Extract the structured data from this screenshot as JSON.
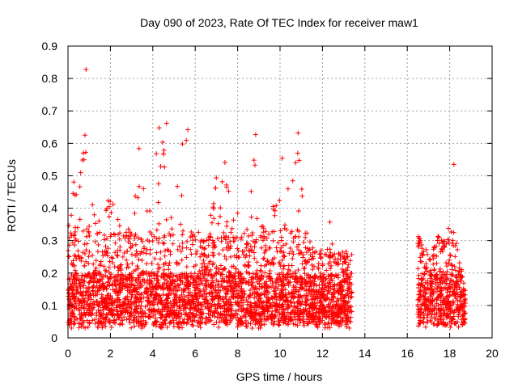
{
  "chart_data": {
    "type": "scatter",
    "title": "Day 090 of 2023, Rate Of TEC Index for receiver maw1",
    "xlabel": "GPS time / hours",
    "ylabel": "ROTI / TECUs",
    "xlim": [
      0,
      20
    ],
    "ylim": [
      0,
      0.9
    ],
    "xticks": [
      0,
      2,
      4,
      6,
      8,
      10,
      12,
      14,
      16,
      18,
      20
    ],
    "yticks": [
      0,
      0.1,
      0.2,
      0.3,
      0.4,
      0.5,
      0.6,
      0.7,
      0.8,
      0.9
    ],
    "xtick_labels": [
      "0",
      "2",
      "4",
      "6",
      "8",
      "10",
      "12",
      "14",
      "16",
      "18",
      "20"
    ],
    "ytick_labels": [
      "0",
      "0.1",
      "0.2",
      "0.3",
      "0.4",
      "0.5",
      "0.6",
      "0.7",
      "0.8",
      "0.9"
    ],
    "grid": true,
    "legend": "none",
    "marker": "plus",
    "color": "#ff0000",
    "series": [
      {
        "segments": [
          [
            0.0,
            13.4
          ],
          [
            16.5,
            18.75
          ]
        ],
        "envelope": [
          [
            0.0,
            0.32
          ],
          [
            0.2,
            0.5
          ],
          [
            0.5,
            0.46
          ],
          [
            0.8,
            0.62
          ],
          [
            1.0,
            0.5
          ],
          [
            1.2,
            0.4
          ],
          [
            1.5,
            0.38
          ],
          [
            1.8,
            0.42
          ],
          [
            2.0,
            0.46
          ],
          [
            2.3,
            0.38
          ],
          [
            2.6,
            0.35
          ],
          [
            2.8,
            0.32
          ],
          [
            3.0,
            0.42
          ],
          [
            3.3,
            0.54
          ],
          [
            3.6,
            0.5
          ],
          [
            3.8,
            0.42
          ],
          [
            4.0,
            0.48
          ],
          [
            4.2,
            0.64
          ],
          [
            4.5,
            0.6
          ],
          [
            4.7,
            0.5
          ],
          [
            5.0,
            0.48
          ],
          [
            5.3,
            0.58
          ],
          [
            5.6,
            0.62
          ],
          [
            5.9,
            0.42
          ],
          [
            6.2,
            0.34
          ],
          [
            6.5,
            0.3
          ],
          [
            6.8,
            0.42
          ],
          [
            7.0,
            0.52
          ],
          [
            7.3,
            0.5
          ],
          [
            7.6,
            0.5
          ],
          [
            7.9,
            0.44
          ],
          [
            8.2,
            0.36
          ],
          [
            8.5,
            0.34
          ],
          [
            8.8,
            0.6
          ],
          [
            9.0,
            0.4
          ],
          [
            9.3,
            0.34
          ],
          [
            9.6,
            0.42
          ],
          [
            9.9,
            0.44
          ],
          [
            10.2,
            0.5
          ],
          [
            10.5,
            0.46
          ],
          [
            10.9,
            0.6
          ],
          [
            11.2,
            0.36
          ],
          [
            11.5,
            0.3
          ],
          [
            11.8,
            0.28
          ],
          [
            12.1,
            0.26
          ],
          [
            12.4,
            0.3
          ],
          [
            12.7,
            0.26
          ],
          [
            13.0,
            0.28
          ],
          [
            13.4,
            0.26
          ],
          [
            16.5,
            0.32
          ],
          [
            16.8,
            0.28
          ],
          [
            17.1,
            0.26
          ],
          [
            17.4,
            0.34
          ],
          [
            17.7,
            0.3
          ],
          [
            18.0,
            0.44
          ],
          [
            18.3,
            0.3
          ],
          [
            18.6,
            0.2
          ],
          [
            18.75,
            0.14
          ]
        ],
        "outliers": [
          [
            0.85,
            0.828
          ],
          [
            4.65,
            0.662
          ],
          [
            4.3,
            0.648
          ],
          [
            5.65,
            0.642
          ],
          [
            10.85,
            0.632
          ],
          [
            0.8,
            0.625
          ],
          [
            8.85,
            0.627
          ],
          [
            18.2,
            0.535
          ],
          [
            10.1,
            0.554
          ],
          [
            3.35,
            0.584
          ],
          [
            5.4,
            0.598
          ],
          [
            7.4,
            0.541
          ],
          [
            12.35,
            0.357
          ]
        ]
      }
    ]
  }
}
